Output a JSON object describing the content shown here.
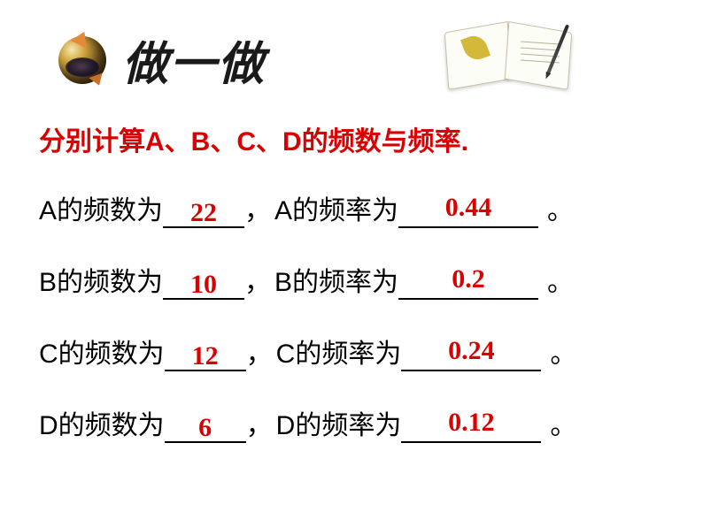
{
  "colors": {
    "background": "#ffffff",
    "title_text": "#1a1a1a",
    "instruction_text": "#d80000",
    "body_text": "#000000",
    "answer_text": "#d80000",
    "underline": "#000000"
  },
  "typography": {
    "title_font": "KaiTi",
    "title_fontsize": 52,
    "title_weight": "bold",
    "title_style": "italic",
    "instruction_fontsize": 30,
    "instruction_weight": "bold",
    "body_fontsize": 30,
    "answer_fontsize": 30,
    "answer_family": "Times New Roman",
    "answer_weight": "bold"
  },
  "title": "做一做",
  "instruction": "分别计算A、B、C、D的频数与频率.",
  "rows": [
    {
      "label": "A",
      "count": "22",
      "rate": "0.44"
    },
    {
      "label": "B",
      "count": "10",
      "rate": "0.2"
    },
    {
      "label": "C",
      "count": "12",
      "rate": "0.24"
    },
    {
      "label": "D",
      "count": "6",
      "rate": "0.12"
    }
  ],
  "phrases": {
    "count_prefix": "的频数为",
    "rate_prefix": "的频率为",
    "comma": "，",
    "period": "。"
  },
  "icons": {
    "globe": "globe-icon",
    "notebook": "notebook-icon"
  }
}
